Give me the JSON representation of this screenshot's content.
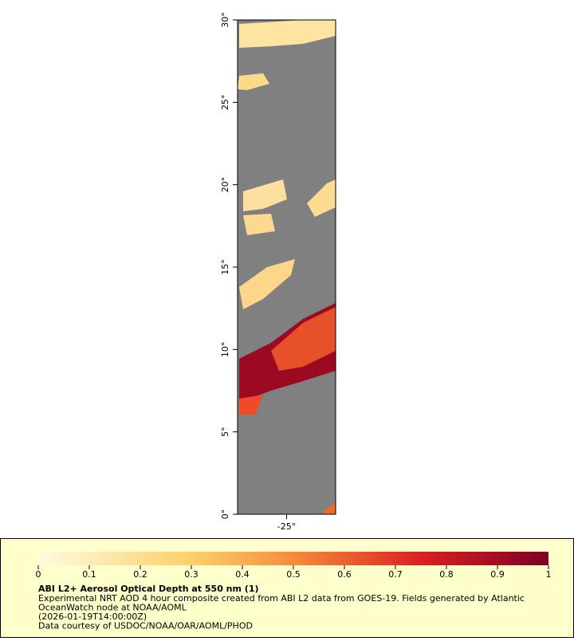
{
  "map": {
    "xlim": [
      -28,
      -22
    ],
    "ylim": [
      0,
      30
    ],
    "xticks": [
      {
        "value": -25,
        "label": "-25°"
      }
    ],
    "yticks": [
      {
        "value": 0,
        "label": "0°"
      },
      {
        "value": 5,
        "label": "5°"
      },
      {
        "value": 10,
        "label": "10°"
      },
      {
        "value": 15,
        "label": "15°"
      },
      {
        "value": 20,
        "label": "20°"
      },
      {
        "value": 25,
        "label": "25°"
      },
      {
        "value": 30,
        "label": "30°"
      }
    ]
  },
  "legend": {
    "range": [
      0,
      1
    ],
    "ticks": [
      0,
      0.1,
      0.2,
      0.3,
      0.4,
      0.5,
      0.6,
      0.7,
      0.8,
      0.9,
      1
    ],
    "title": "ABI L2+ Aerosol Optical Depth at 550 nm (1)",
    "lines": [
      "Experimental NRT AOD 4 hour composite created from ABI L2 data from GOES-19. Fields generated by Atlantic",
      "OceanWatch node at NOAA/AOML",
      "(2026-01-19T14:00:00Z)",
      "Data courtesy of USDOC/NOAA/OAR/AOML/PHOD"
    ]
  }
}
